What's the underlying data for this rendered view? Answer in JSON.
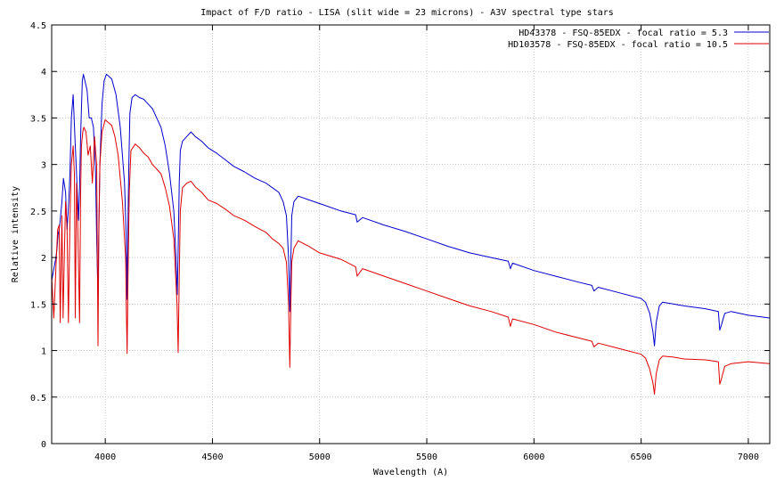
{
  "chart_data": {
    "type": "line",
    "title": "Impact of F/D ratio - LISA (slit wide = 23 microns) - A3V spectral type stars",
    "xlabel": "Wavelength (A)",
    "ylabel": "Relative intensity",
    "xlim": [
      3750,
      7100
    ],
    "ylim": [
      0,
      4.5
    ],
    "xticks": [
      "4000",
      "4500",
      "5000",
      "5500",
      "6000",
      "6500",
      "7000"
    ],
    "yticks": [
      "0",
      "0.5",
      "1",
      "1.5",
      "2",
      "2.5",
      "3",
      "3.5",
      "4",
      "4.5"
    ],
    "grid": true,
    "legend_position": "top-right",
    "series": [
      {
        "name": "HD43378 - FSQ-85EDX - focal ratio = 5.3",
        "color": "#0000cc",
        "x": [
          3750,
          3770,
          3775,
          3780,
          3785,
          3790,
          3798,
          3805,
          3815,
          3822,
          3830,
          3835,
          3842,
          3850,
          3860,
          3866,
          3875,
          3880,
          3885,
          3889,
          3893,
          3898,
          3905,
          3915,
          3925,
          3935,
          3945,
          3955,
          3960,
          3966,
          3970,
          3975,
          3985,
          3995,
          4005,
          4015,
          4030,
          4050,
          4070,
          4090,
          4098,
          4102,
          4105,
          4110,
          4115,
          4125,
          4140,
          4160,
          4180,
          4200,
          4220,
          4240,
          4260,
          4280,
          4300,
          4320,
          4330,
          4336,
          4340,
          4345,
          4350,
          4360,
          4380,
          4400,
          4420,
          4450,
          4480,
          4520,
          4560,
          4600,
          4650,
          4700,
          4750,
          4780,
          4810,
          4830,
          4845,
          4855,
          4861,
          4865,
          4870,
          4880,
          4900,
          4950,
          5000,
          5100,
          5168,
          5175,
          5200,
          5300,
          5400,
          5500,
          5600,
          5700,
          5800,
          5880,
          5890,
          5900,
          6000,
          6100,
          6200,
          6270,
          6280,
          6300,
          6400,
          6500,
          6520,
          6540,
          6555,
          6562,
          6570,
          6585,
          6600,
          6650,
          6700,
          6800,
          6860,
          6867,
          6875,
          6890,
          6920,
          7000,
          7100
        ],
        "y": [
          1.75,
          2.0,
          2.1,
          2.25,
          2.3,
          2.4,
          2.6,
          2.85,
          2.7,
          2.3,
          2.6,
          2.9,
          3.5,
          3.75,
          3.2,
          2.9,
          2.4,
          2.75,
          3.3,
          3.6,
          3.9,
          3.97,
          3.9,
          3.8,
          3.5,
          3.5,
          3.4,
          2.9,
          2.2,
          1.6,
          2.3,
          3.0,
          3.65,
          3.9,
          3.97,
          3.95,
          3.92,
          3.75,
          3.4,
          2.8,
          2.2,
          1.55,
          2.2,
          3.0,
          3.55,
          3.72,
          3.75,
          3.72,
          3.7,
          3.65,
          3.6,
          3.5,
          3.4,
          3.2,
          2.9,
          2.5,
          2.0,
          1.6,
          2.1,
          2.8,
          3.15,
          3.25,
          3.3,
          3.35,
          3.3,
          3.25,
          3.18,
          3.12,
          3.05,
          2.98,
          2.92,
          2.85,
          2.8,
          2.75,
          2.7,
          2.6,
          2.45,
          2.0,
          1.42,
          1.9,
          2.45,
          2.6,
          2.66,
          2.62,
          2.58,
          2.5,
          2.46,
          2.38,
          2.43,
          2.35,
          2.28,
          2.2,
          2.12,
          2.05,
          2.0,
          1.96,
          1.88,
          1.94,
          1.86,
          1.8,
          1.74,
          1.7,
          1.64,
          1.68,
          1.62,
          1.56,
          1.52,
          1.4,
          1.2,
          1.05,
          1.3,
          1.48,
          1.52,
          1.5,
          1.48,
          1.45,
          1.42,
          1.22,
          1.28,
          1.4,
          1.42,
          1.38,
          1.35
        ]
      },
      {
        "name": "HD103578 - FSQ-85EDX - focal ratio = 10.5",
        "color": "#e00000",
        "x": [
          3750,
          3760,
          3770,
          3778,
          3785,
          3790,
          3795,
          3798,
          3803,
          3810,
          3815,
          3822,
          3828,
          3835,
          3842,
          3850,
          3856,
          3860,
          3866,
          3872,
          3880,
          3885,
          3889,
          3895,
          3900,
          3910,
          3920,
          3930,
          3940,
          3950,
          3960,
          3966,
          3970,
          3975,
          3985,
          4000,
          4015,
          4030,
          4045,
          4060,
          4080,
          4095,
          4098,
          4102,
          4106,
          4112,
          4120,
          4140,
          4160,
          4180,
          4200,
          4220,
          4240,
          4260,
          4280,
          4300,
          4320,
          4335,
          4340,
          4345,
          4350,
          4360,
          4380,
          4400,
          4420,
          4450,
          4480,
          4520,
          4560,
          4600,
          4650,
          4700,
          4750,
          4780,
          4810,
          4830,
          4845,
          4855,
          4861,
          4865,
          4870,
          4880,
          4900,
          4950,
          5000,
          5100,
          5168,
          5175,
          5200,
          5300,
          5400,
          5500,
          5600,
          5700,
          5800,
          5880,
          5890,
          5900,
          6000,
          6100,
          6200,
          6270,
          6280,
          6300,
          6400,
          6500,
          6520,
          6540,
          6555,
          6562,
          6570,
          6585,
          6600,
          6650,
          6700,
          6800,
          6860,
          6867,
          6875,
          6890,
          6920,
          7000,
          7100
        ],
        "y": [
          1.8,
          1.35,
          1.9,
          2.3,
          2.35,
          1.3,
          2.0,
          2.45,
          1.35,
          2.1,
          2.6,
          2.3,
          1.3,
          2.4,
          3.0,
          3.2,
          2.9,
          1.35,
          2.8,
          2.3,
          1.3,
          2.7,
          3.2,
          3.35,
          3.4,
          3.35,
          3.1,
          3.2,
          2.8,
          3.3,
          3.0,
          1.05,
          2.2,
          3.0,
          3.35,
          3.48,
          3.45,
          3.42,
          3.3,
          3.1,
          2.6,
          2.0,
          1.5,
          0.97,
          1.8,
          2.7,
          3.15,
          3.22,
          3.18,
          3.12,
          3.08,
          3.0,
          2.95,
          2.9,
          2.75,
          2.55,
          2.2,
          1.5,
          0.98,
          1.8,
          2.5,
          2.75,
          2.8,
          2.82,
          2.76,
          2.7,
          2.62,
          2.58,
          2.52,
          2.45,
          2.4,
          2.33,
          2.27,
          2.2,
          2.15,
          2.1,
          1.95,
          1.5,
          0.82,
          1.4,
          1.95,
          2.1,
          2.18,
          2.12,
          2.05,
          1.98,
          1.9,
          1.8,
          1.88,
          1.8,
          1.72,
          1.64,
          1.56,
          1.48,
          1.42,
          1.36,
          1.26,
          1.34,
          1.28,
          1.2,
          1.14,
          1.1,
          1.04,
          1.08,
          1.02,
          0.96,
          0.92,
          0.8,
          0.65,
          0.53,
          0.75,
          0.9,
          0.94,
          0.93,
          0.91,
          0.9,
          0.88,
          0.64,
          0.7,
          0.83,
          0.86,
          0.88,
          0.86
        ]
      }
    ]
  }
}
